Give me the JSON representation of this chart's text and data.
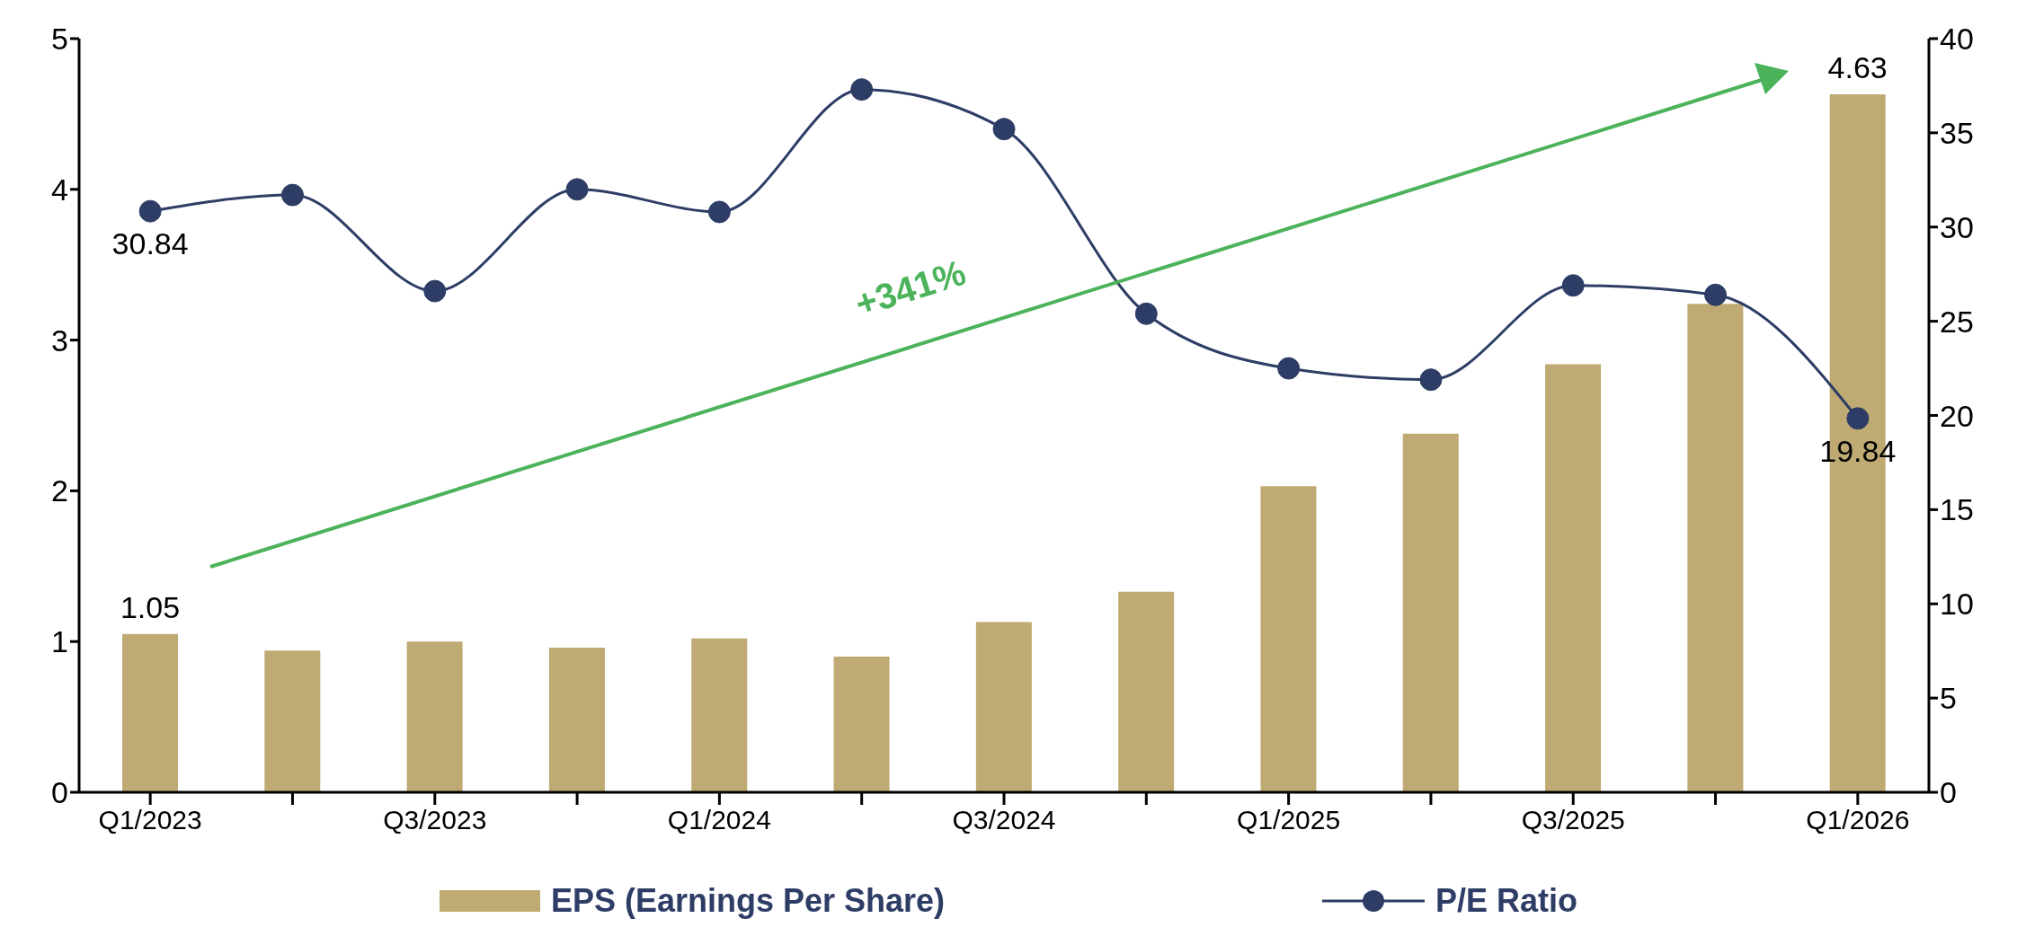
{
  "chart_data": {
    "type": "bar",
    "categories": [
      "Q1/2023",
      null,
      "Q3/2023",
      null,
      "Q1/2024",
      null,
      "Q3/2024",
      null,
      "Q1/2025",
      null,
      "Q3/2025",
      null,
      "Q1/2026"
    ],
    "series": [
      {
        "name": "EPS (Earnings Per Share)",
        "color": "#bfaa74",
        "values": [
          1.05,
          0.94,
          1.0,
          0.96,
          1.02,
          0.9,
          1.13,
          1.33,
          2.03,
          2.38,
          2.84,
          3.24,
          4.63
        ],
        "value_labels": [
          "1.05",
          null,
          null,
          null,
          null,
          null,
          null,
          null,
          null,
          null,
          null,
          null,
          "4.63"
        ]
      },
      {
        "name": "P/E Ratio",
        "type": "line",
        "axis": "y2",
        "color": "#2e3d66",
        "values": [
          30.84,
          31.7,
          26.6,
          32.0,
          30.8,
          37.3,
          35.2,
          25.4,
          22.5,
          21.9,
          26.9,
          26.4,
          19.84
        ],
        "value_labels": [
          "30.84",
          null,
          null,
          null,
          null,
          null,
          null,
          null,
          null,
          null,
          null,
          null,
          "19.84"
        ]
      }
    ],
    "ylim": [
      0,
      5
    ],
    "yticks": [
      0,
      1,
      2,
      3,
      4,
      5
    ],
    "y2lim": [
      0,
      40
    ],
    "y2ticks": [
      0,
      5,
      10,
      15,
      20,
      25,
      30,
      35,
      40
    ],
    "annotations": [
      "+341%"
    ],
    "legend": "bottom",
    "marker": "circle"
  }
}
